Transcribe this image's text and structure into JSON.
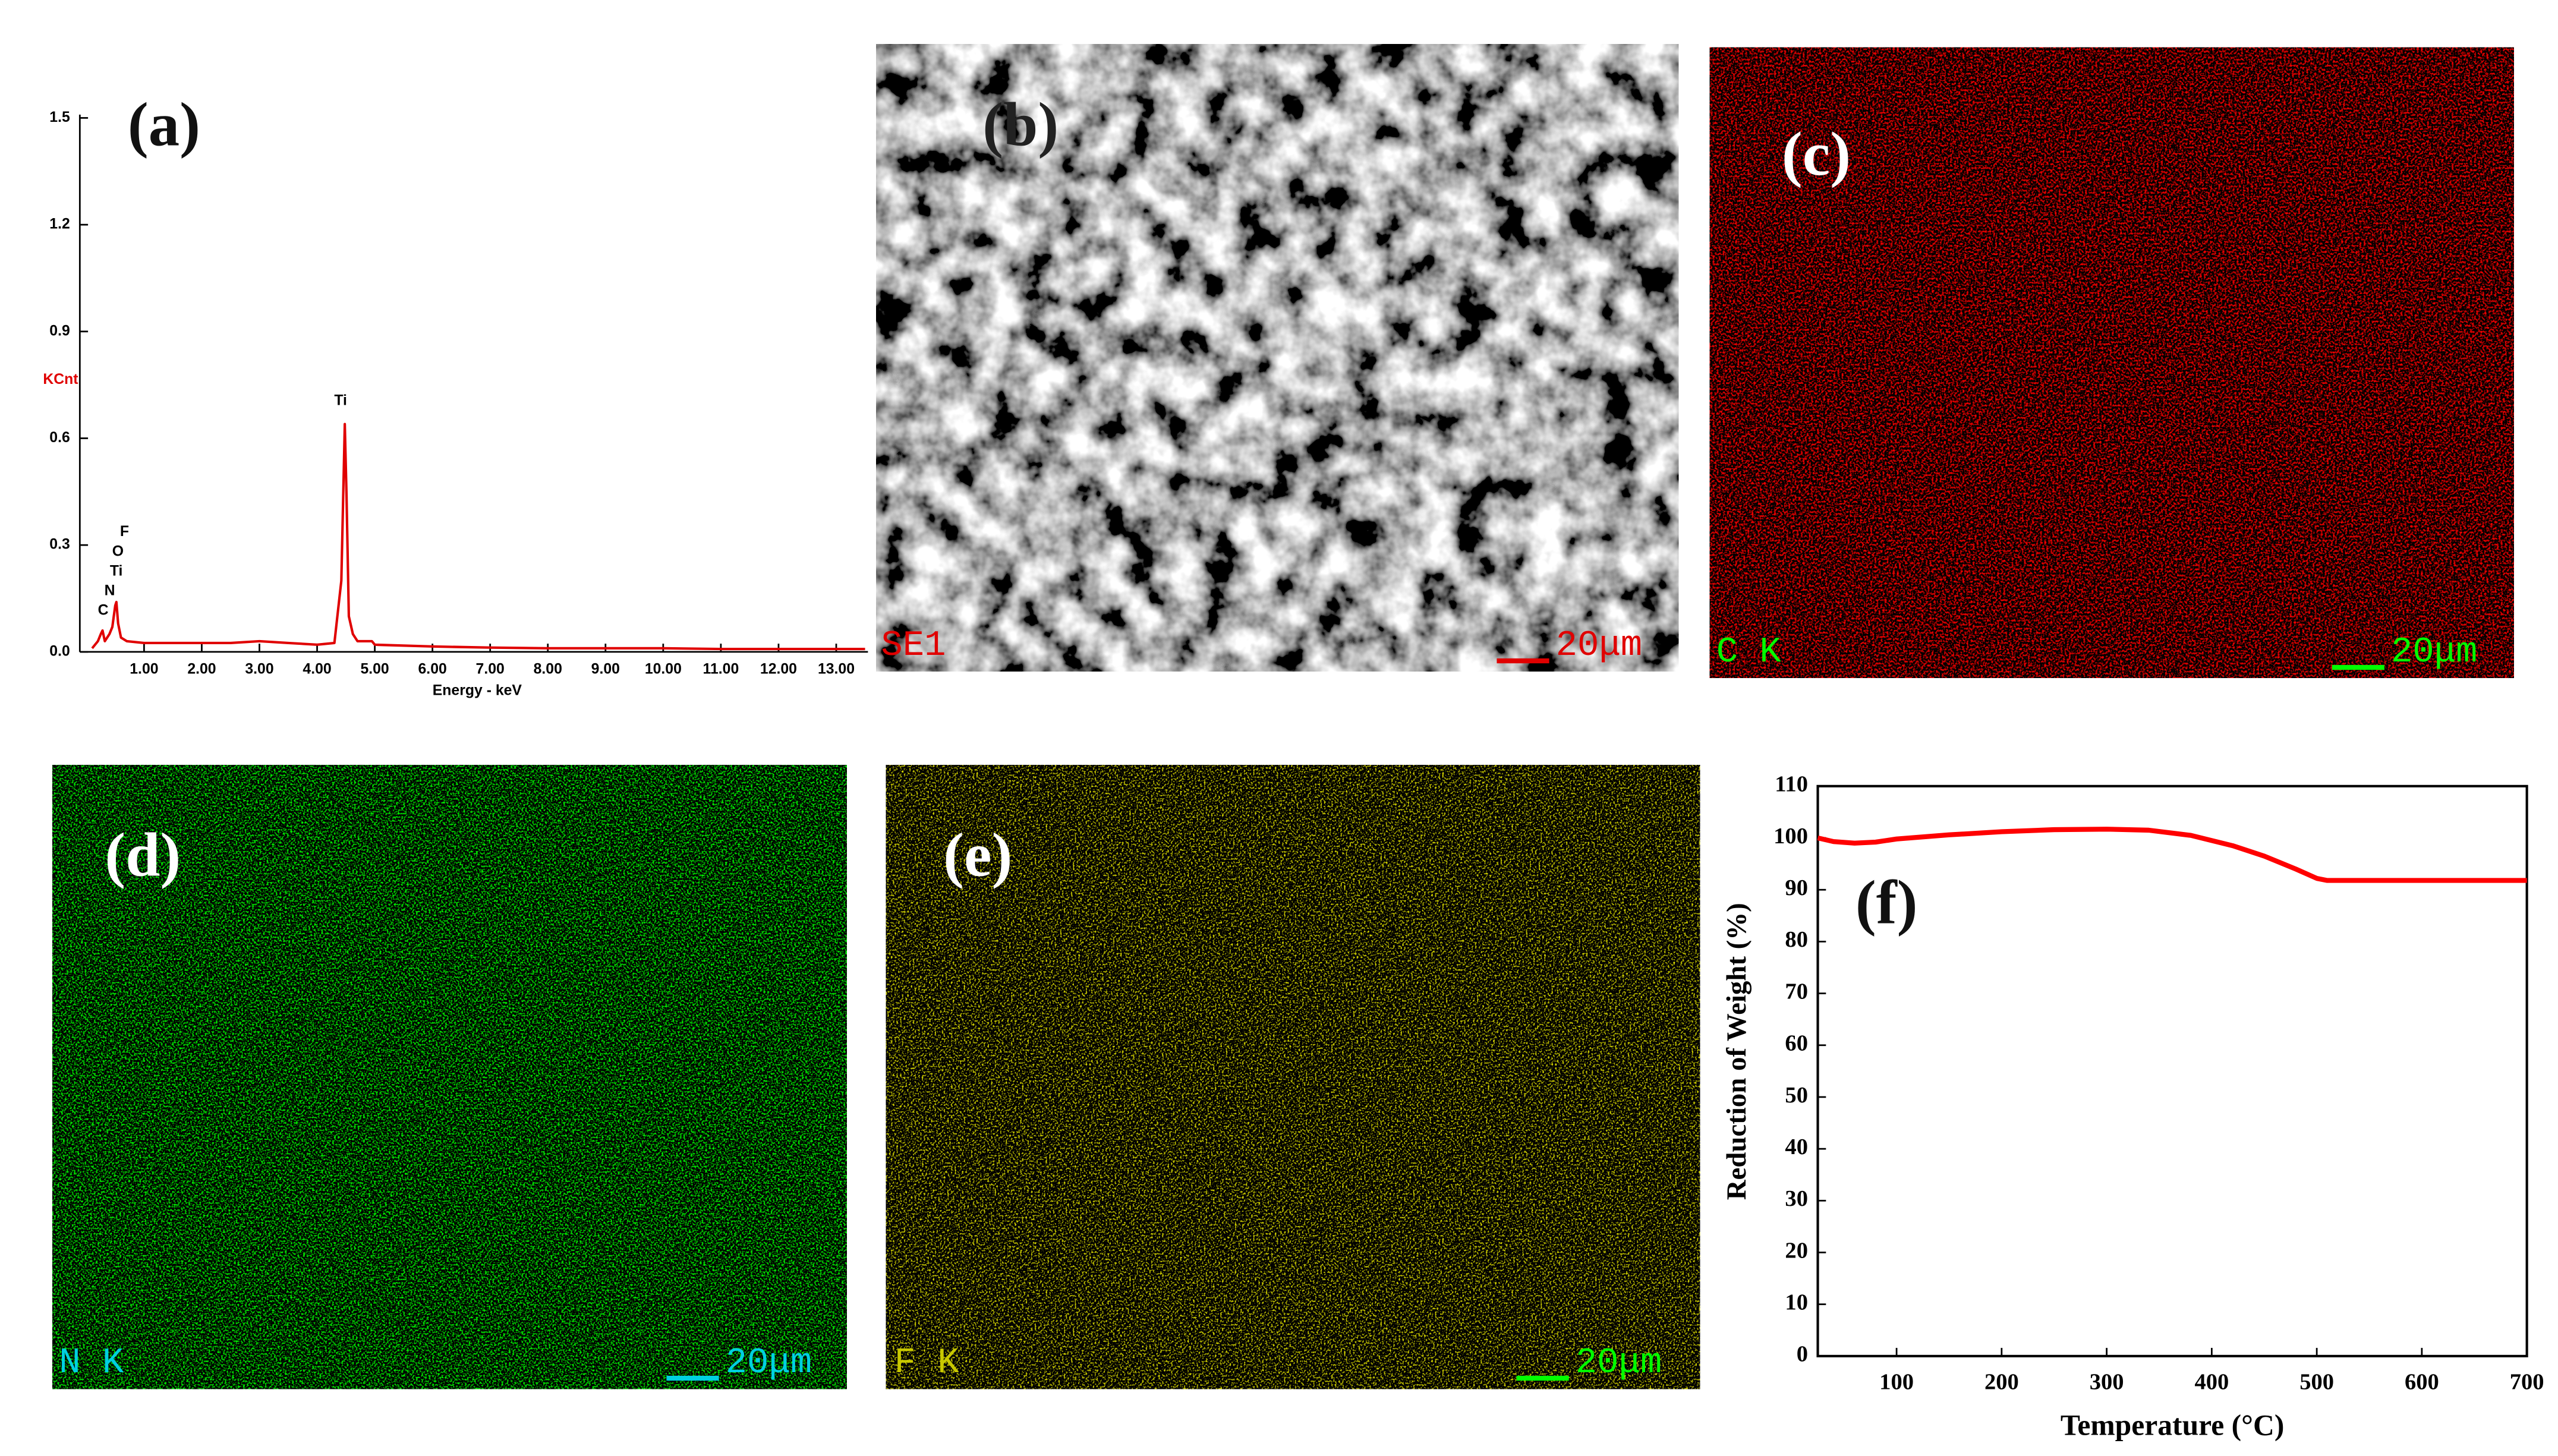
{
  "chart_data": [
    {
      "type": "line",
      "panel_label": "(a)",
      "x": [
        0.1,
        0.2,
        0.25,
        0.28,
        0.32,
        0.36,
        0.4,
        0.45,
        0.5,
        0.52,
        0.55,
        0.6,
        0.7,
        1.0,
        1.5,
        2.0,
        2.5,
        3.0,
        3.5,
        4.0,
        4.3,
        4.42,
        4.48,
        4.51,
        4.55,
        4.62,
        4.7,
        4.95,
        5.0,
        6.0,
        7.0,
        8.0,
        9.0,
        10.0,
        11.0,
        12.0,
        13.0,
        13.5
      ],
      "values": [
        0.01,
        0.03,
        0.05,
        0.06,
        0.03,
        0.04,
        0.05,
        0.07,
        0.13,
        0.14,
        0.08,
        0.04,
        0.03,
        0.025,
        0.025,
        0.025,
        0.025,
        0.03,
        0.025,
        0.02,
        0.025,
        0.2,
        0.64,
        0.44,
        0.1,
        0.05,
        0.03,
        0.03,
        0.02,
        0.015,
        0.012,
        0.01,
        0.01,
        0.01,
        0.008,
        0.008,
        0.008,
        0.008
      ],
      "color": "#e00000",
      "xlim": [
        0,
        13.55
      ],
      "ylim": [
        0,
        1.5
      ],
      "xticks": [
        {
          "value": 1,
          "label": "1.00"
        },
        {
          "value": 2,
          "label": "2.00"
        },
        {
          "value": 3,
          "label": "3.00"
        },
        {
          "value": 4,
          "label": "4.00"
        },
        {
          "value": 5,
          "label": "5.00"
        },
        {
          "value": 6,
          "label": "6.00"
        },
        {
          "value": 7,
          "label": "7.00"
        },
        {
          "value": 8,
          "label": "8.00"
        },
        {
          "value": 9,
          "label": "9.00"
        },
        {
          "value": 10,
          "label": "10.00"
        },
        {
          "value": 11,
          "label": "11.00"
        },
        {
          "value": 12,
          "label": "12.00"
        },
        {
          "value": 13,
          "label": "13.00"
        }
      ],
      "yticks": [
        {
          "value": 0,
          "label": "0.0"
        },
        {
          "value": 0.3,
          "label": "0.3"
        },
        {
          "value": 0.6,
          "label": "0.6"
        },
        {
          "value": 0.9,
          "label": "0.9"
        },
        {
          "value": 1.2,
          "label": "1.2"
        },
        {
          "value": 1.5,
          "label": "1.5"
        }
      ],
      "xlabel": "Energy - keV",
      "ylabel": "KCnt",
      "annotations": [
        "Ti",
        "F",
        "O",
        "Ti",
        "N",
        "C"
      ]
    },
    {
      "type": "line",
      "panel_label": "(f)",
      "x": [
        25,
        40,
        60,
        80,
        100,
        150,
        200,
        250,
        300,
        340,
        380,
        420,
        450,
        480,
        500,
        510,
        520,
        600,
        700
      ],
      "values": [
        100,
        99.3,
        99,
        99.2,
        99.8,
        100.6,
        101.2,
        101.6,
        101.7,
        101.5,
        100.5,
        98.5,
        96.5,
        94,
        92.2,
        91.8,
        91.8,
        91.8,
        91.8
      ],
      "color": "#ff0000",
      "xlim": [
        25,
        700
      ],
      "ylim": [
        0,
        110
      ],
      "xticks": [
        100,
        200,
        300,
        400,
        500,
        600,
        700
      ],
      "yticks": [
        0,
        10,
        20,
        30,
        40,
        50,
        60,
        70,
        80,
        90,
        100,
        110
      ],
      "xlabel": "Temperature (°C)",
      "ylabel": "Reduction of Weight (%)"
    }
  ],
  "images": [
    {
      "label": "(b)",
      "channel": "SE1",
      "scale": "20μm"
    },
    {
      "label": "(c)",
      "channel": "C K",
      "scale": "20μm"
    },
    {
      "label": "(d)",
      "channel": "N K",
      "scale": "20μm"
    },
    {
      "label": "(e)",
      "channel": "F K",
      "scale": "20μm"
    }
  ]
}
